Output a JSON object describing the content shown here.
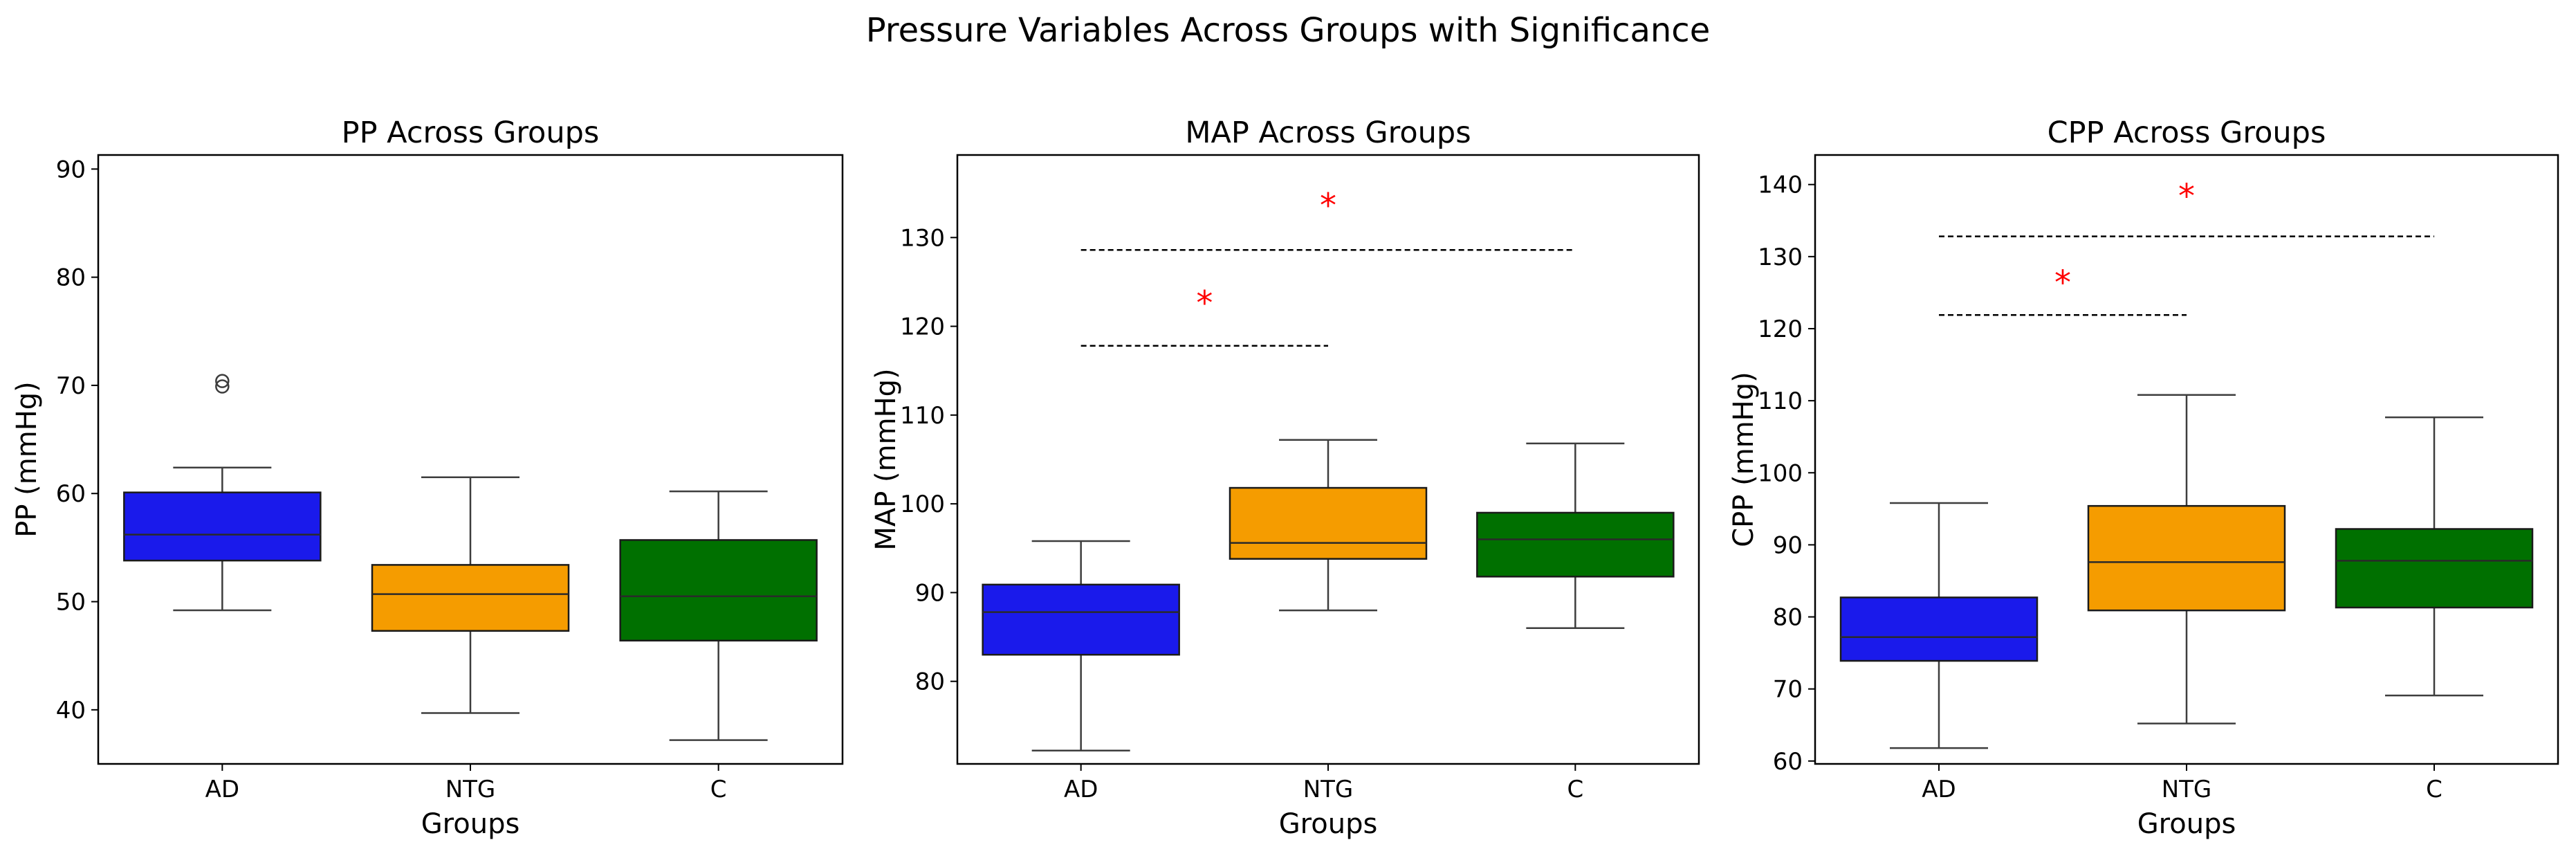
{
  "figure_title": "Pressure Variables Across Groups with Significance",
  "colors": {
    "AD": "#1a1aeb",
    "NTG": "#f59c00",
    "C": "#007000",
    "significance": "#ff0000",
    "line": "#3d3d3d"
  },
  "chart_data": [
    {
      "type": "box",
      "title": "PP Across Groups",
      "xlabel": "Groups",
      "ylabel": "PP (mmHg)",
      "categories": [
        "AD",
        "NTG",
        "C"
      ],
      "ylim": [
        35,
        91.3
      ],
      "yticks": [
        40,
        50,
        60,
        70,
        80,
        90
      ],
      "boxes": [
        {
          "group": "AD",
          "whisker_low": 49.2,
          "q1": 53.8,
          "median": 56.2,
          "q3": 60.1,
          "whisker_high": 62.4,
          "outliers": [
            69.9,
            70.4
          ]
        },
        {
          "group": "NTG",
          "whisker_low": 39.7,
          "q1": 47.3,
          "median": 50.7,
          "q3": 53.4,
          "whisker_high": 61.5,
          "outliers": []
        },
        {
          "group": "C",
          "whisker_low": 37.2,
          "q1": 46.4,
          "median": 50.5,
          "q3": 55.7,
          "whisker_high": 60.2,
          "outliers": []
        }
      ],
      "significance": []
    },
    {
      "type": "box",
      "title": "MAP Across Groups",
      "xlabel": "Groups",
      "ylabel": "MAP (mmHg)",
      "categories": [
        "AD",
        "NTG",
        "C"
      ],
      "ylim": [
        70.7,
        139.3
      ],
      "yticks": [
        80,
        90,
        100,
        110,
        120,
        130
      ],
      "boxes": [
        {
          "group": "AD",
          "whisker_low": 72.2,
          "q1": 83.0,
          "median": 87.8,
          "q3": 90.9,
          "whisker_high": 95.8,
          "outliers": []
        },
        {
          "group": "NTG",
          "whisker_low": 88.0,
          "q1": 93.8,
          "median": 95.6,
          "q3": 101.8,
          "whisker_high": 107.2,
          "outliers": []
        },
        {
          "group": "C",
          "whisker_low": 86.0,
          "q1": 91.8,
          "median": 96.0,
          "q3": 99.0,
          "whisker_high": 106.8,
          "outliers": []
        }
      ],
      "significance": [
        {
          "from": "AD",
          "to": "NTG",
          "y": 117.8,
          "star_y": 123.5,
          "label": "*"
        },
        {
          "from": "AD",
          "to": "C",
          "y": 128.6,
          "star_y": 134.5,
          "label": "*"
        }
      ]
    },
    {
      "type": "box",
      "title": "CPP Across Groups",
      "xlabel": "Groups",
      "ylabel": "CPP (mmHg)",
      "categories": [
        "AD",
        "NTG",
        "C"
      ],
      "ylim": [
        59.6,
        144.1
      ],
      "yticks": [
        60,
        70,
        80,
        90,
        100,
        110,
        120,
        130,
        140
      ],
      "boxes": [
        {
          "group": "AD",
          "whisker_low": 61.8,
          "q1": 73.9,
          "median": 77.2,
          "q3": 82.7,
          "whisker_high": 95.8,
          "outliers": []
        },
        {
          "group": "NTG",
          "whisker_low": 65.2,
          "q1": 80.9,
          "median": 87.6,
          "q3": 95.4,
          "whisker_high": 110.8,
          "outliers": []
        },
        {
          "group": "C",
          "whisker_low": 69.1,
          "q1": 81.3,
          "median": 87.8,
          "q3": 92.2,
          "whisker_high": 107.7,
          "outliers": []
        }
      ],
      "significance": [
        {
          "from": "AD",
          "to": "NTG",
          "y": 121.9,
          "star_y": 127.5,
          "label": "*"
        },
        {
          "from": "AD",
          "to": "C",
          "y": 132.8,
          "star_y": 139.5,
          "label": "*"
        }
      ]
    }
  ]
}
